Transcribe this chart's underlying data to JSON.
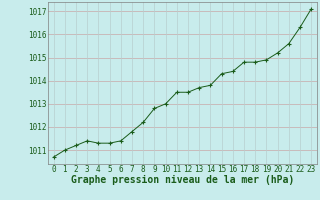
{
  "hours": [
    0,
    1,
    2,
    3,
    4,
    5,
    6,
    7,
    8,
    9,
    10,
    11,
    12,
    13,
    14,
    15,
    16,
    17,
    18,
    19,
    20,
    21,
    22,
    23
  ],
  "pressure": [
    1010.7,
    1011.0,
    1011.2,
    1011.4,
    1011.3,
    1011.3,
    1011.4,
    1011.8,
    1012.2,
    1012.8,
    1013.0,
    1013.5,
    1013.5,
    1013.7,
    1013.8,
    1014.3,
    1014.4,
    1014.8,
    1014.8,
    1014.9,
    1015.2,
    1015.6,
    1016.3,
    1017.1
  ],
  "line_color": "#1a5c1a",
  "marker": "+",
  "background_color": "#c8ecec",
  "grid_color_h": "#c8a8a8",
  "grid_color_v": "#b8cece",
  "xlabel": "Graphe pression niveau de la mer (hPa)",
  "xlabel_color": "#1a5c1a",
  "xlabel_fontsize": 7.0,
  "ylim": [
    1010.4,
    1017.4
  ],
  "yticks": [
    1011,
    1012,
    1013,
    1014,
    1015,
    1016,
    1017
  ],
  "xticks": [
    0,
    1,
    2,
    3,
    4,
    5,
    6,
    7,
    8,
    9,
    10,
    11,
    12,
    13,
    14,
    15,
    16,
    17,
    18,
    19,
    20,
    21,
    22,
    23
  ],
  "tick_fontsize": 5.5,
  "tick_color": "#1a5c1a",
  "spine_color": "#808080"
}
